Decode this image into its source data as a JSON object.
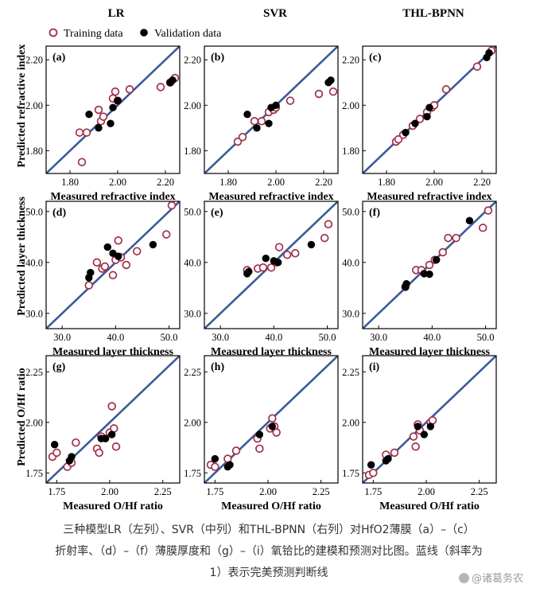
{
  "column_titles": [
    "LR",
    "SVR",
    "THL-BPNN"
  ],
  "legend": {
    "training": "Training data",
    "validation": "Validation data"
  },
  "row_axes": [
    {
      "ylabel": "Predicted refractive index",
      "xlabel": "Measured refractive index",
      "ticks": [
        1.8,
        2.0,
        2.2
      ],
      "tick_labels": [
        "1.80",
        "2.00",
        "2.20"
      ],
      "lim": [
        1.7,
        2.26
      ]
    },
    {
      "ylabel": "Predicted layer thickness",
      "xlabel": "Measured layer thickness",
      "ticks": [
        30,
        40,
        50
      ],
      "tick_labels": [
        "30.0",
        "40.0",
        "50.0"
      ],
      "lim": [
        27,
        52
      ]
    },
    {
      "ylabel": "Predicted O/Hf ratio",
      "xlabel": "Measured O/Hf ratio",
      "ticks": [
        1.75,
        2.0,
        2.25
      ],
      "tick_labels": [
        "1.75",
        "2.00",
        "2.25"
      ],
      "lim": [
        1.7,
        2.33
      ]
    }
  ],
  "chart_data": [
    {
      "type": "scatter",
      "panel": "(a)",
      "model": "LR",
      "row": 0,
      "col": 0,
      "xlabel": "Measured refractive index",
      "ylabel": "Predicted refractive index",
      "xlim": [
        1.7,
        2.26
      ],
      "ylim": [
        1.7,
        2.26
      ],
      "reference_line": "y = x",
      "series": [
        {
          "name": "Training data",
          "x": [
            1.84,
            1.85,
            1.87,
            1.92,
            1.93,
            1.94,
            1.98,
            1.99,
            2.0,
            2.05,
            2.18,
            2.22,
            2.24
          ],
          "y": [
            1.88,
            1.75,
            1.88,
            1.98,
            1.93,
            1.95,
            2.03,
            2.06,
            2.02,
            2.07,
            2.08,
            2.1,
            2.12
          ]
        },
        {
          "name": "Validation data",
          "x": [
            1.88,
            1.92,
            1.97,
            1.98,
            2.0,
            2.22,
            2.23
          ],
          "y": [
            1.96,
            1.9,
            1.92,
            1.99,
            2.02,
            2.1,
            2.11
          ]
        }
      ]
    },
    {
      "type": "scatter",
      "panel": "(b)",
      "model": "SVR",
      "row": 0,
      "col": 1,
      "xlabel": "Measured refractive index",
      "ylabel": "Predicted refractive index",
      "xlim": [
        1.7,
        2.26
      ],
      "ylim": [
        1.7,
        2.26
      ],
      "reference_line": "y = x",
      "series": [
        {
          "name": "Training data",
          "x": [
            1.84,
            1.86,
            1.91,
            1.94,
            1.97,
            1.99,
            2.0,
            2.06,
            2.18,
            2.24
          ],
          "y": [
            1.84,
            1.86,
            1.93,
            1.93,
            1.97,
            1.98,
            1.99,
            2.02,
            2.05,
            2.06
          ]
        },
        {
          "name": "Validation data",
          "x": [
            1.88,
            1.92,
            1.97,
            1.98,
            2.0,
            2.22,
            2.23
          ],
          "y": [
            1.96,
            1.9,
            1.92,
            1.99,
            2.0,
            2.1,
            2.11
          ]
        }
      ]
    },
    {
      "type": "scatter",
      "panel": "(c)",
      "model": "THL-BPNN",
      "row": 0,
      "col": 2,
      "xlabel": "Measured refractive index",
      "ylabel": "Predicted refractive index",
      "xlim": [
        1.7,
        2.26
      ],
      "ylim": [
        1.7,
        2.26
      ],
      "reference_line": "y = x",
      "series": [
        {
          "name": "Training data",
          "x": [
            1.84,
            1.85,
            1.87,
            1.91,
            1.94,
            1.97,
            1.99,
            2.0,
            2.05,
            2.18,
            2.24
          ],
          "y": [
            1.84,
            1.85,
            1.87,
            1.91,
            1.94,
            1.97,
            1.99,
            2.0,
            2.07,
            2.17,
            2.24
          ]
        },
        {
          "name": "Validation data",
          "x": [
            1.88,
            1.92,
            1.97,
            1.98,
            2.22,
            2.23
          ],
          "y": [
            1.88,
            1.92,
            1.95,
            1.99,
            2.21,
            2.23
          ]
        }
      ]
    },
    {
      "type": "scatter",
      "panel": "(d)",
      "model": "LR",
      "row": 1,
      "col": 0,
      "xlabel": "Measured layer thickness",
      "ylabel": "Predicted layer thickness",
      "xlim": [
        27,
        52
      ],
      "ylim": [
        27,
        52
      ],
      "reference_line": "y = x",
      "series": [
        {
          "name": "Training data",
          "x": [
            35.0,
            36.5,
            37.5,
            38.0,
            39.5,
            40.0,
            40.5,
            41.0,
            42.0,
            44.0,
            49.5,
            50.5
          ],
          "y": [
            35.5,
            40.0,
            38.8,
            39.2,
            37.5,
            40.5,
            44.3,
            41.0,
            39.5,
            42.2,
            45.5,
            51.2
          ]
        },
        {
          "name": "Validation data",
          "x": [
            35.0,
            35.3,
            38.5,
            39.5,
            40.5,
            47.0
          ],
          "y": [
            37.0,
            38.0,
            43.0,
            41.8,
            41.2,
            43.5
          ]
        }
      ]
    },
    {
      "type": "scatter",
      "panel": "(e)",
      "model": "SVR",
      "row": 1,
      "col": 1,
      "xlabel": "Measured layer thickness",
      "ylabel": "Predicted layer thickness",
      "xlim": [
        27,
        52
      ],
      "ylim": [
        27,
        52
      ],
      "reference_line": "y = x",
      "series": [
        {
          "name": "Training data",
          "x": [
            35.0,
            37.0,
            38.0,
            39.5,
            40.5,
            41.0,
            42.5,
            44.0,
            49.5,
            50.2
          ],
          "y": [
            38.5,
            38.8,
            39.0,
            39.0,
            40.0,
            43.0,
            41.5,
            41.8,
            44.8,
            47.5
          ]
        },
        {
          "name": "Validation data",
          "x": [
            35.0,
            35.3,
            38.5,
            40.0,
            40.8,
            47.0
          ],
          "y": [
            37.8,
            38.2,
            40.8,
            40.3,
            40.0,
            43.5
          ]
        }
      ]
    },
    {
      "type": "scatter",
      "panel": "(f)",
      "model": "THL-BPNN",
      "row": 1,
      "col": 2,
      "xlabel": "Measured layer thickness",
      "ylabel": "Predicted layer thickness",
      "xlim": [
        27,
        52
      ],
      "ylim": [
        27,
        52
      ],
      "reference_line": "y = x",
      "series": [
        {
          "name": "Training data",
          "x": [
            35.0,
            37.0,
            38.0,
            39.5,
            40.5,
            42.0,
            43.0,
            44.5,
            49.5,
            50.5
          ],
          "y": [
            35.2,
            38.5,
            38.5,
            39.5,
            40.5,
            42.0,
            44.8,
            44.8,
            46.8,
            50.2
          ]
        },
        {
          "name": "Validation data",
          "x": [
            35.0,
            35.2,
            38.5,
            39.5,
            40.8,
            47.0
          ],
          "y": [
            35.2,
            35.8,
            37.8,
            37.7,
            40.5,
            48.2
          ]
        }
      ]
    },
    {
      "type": "scatter",
      "panel": "(g)",
      "model": "LR",
      "row": 2,
      "col": 0,
      "xlabel": "Measured O/Hf ratio",
      "ylabel": "Predicted O/Hf ratio",
      "xlim": [
        1.7,
        2.33
      ],
      "ylim": [
        1.7,
        2.33
      ],
      "reference_line": "y = x",
      "series": [
        {
          "name": "Training data",
          "x": [
            1.73,
            1.75,
            1.8,
            1.82,
            1.84,
            1.94,
            1.95,
            1.96,
            2.0,
            2.01,
            2.02,
            2.03
          ],
          "y": [
            1.83,
            1.85,
            1.78,
            1.8,
            1.9,
            1.87,
            1.85,
            1.93,
            1.95,
            2.08,
            1.97,
            1.88
          ]
        },
        {
          "name": "Validation data",
          "x": [
            1.74,
            1.81,
            1.82,
            1.96,
            1.98,
            2.01
          ],
          "y": [
            1.89,
            1.81,
            1.83,
            1.92,
            1.92,
            1.94
          ]
        }
      ]
    },
    {
      "type": "scatter",
      "panel": "(h)",
      "model": "SVR",
      "row": 2,
      "col": 1,
      "xlabel": "Measured O/Hf ratio",
      "ylabel": "Predicted O/Hf ratio",
      "xlim": [
        1.7,
        2.33
      ],
      "ylim": [
        1.7,
        2.33
      ],
      "reference_line": "y = x",
      "series": [
        {
          "name": "Training data",
          "x": [
            1.73,
            1.75,
            1.81,
            1.85,
            1.95,
            1.96,
            2.01,
            2.02,
            2.03,
            2.04
          ],
          "y": [
            1.79,
            1.78,
            1.82,
            1.86,
            1.92,
            1.87,
            1.97,
            2.02,
            1.98,
            1.95
          ]
        },
        {
          "name": "Validation data",
          "x": [
            1.75,
            1.81,
            1.82,
            1.96,
            2.02
          ],
          "y": [
            1.82,
            1.78,
            1.79,
            1.94,
            1.98
          ]
        }
      ]
    },
    {
      "type": "scatter",
      "panel": "(i)",
      "model": "THL-BPNN",
      "row": 2,
      "col": 2,
      "xlabel": "Measured O/Hf ratio",
      "ylabel": "Predicted O/Hf ratio",
      "xlim": [
        1.7,
        2.33
      ],
      "ylim": [
        1.7,
        2.33
      ],
      "reference_line": "y = x",
      "series": [
        {
          "name": "Training data",
          "x": [
            1.73,
            1.75,
            1.81,
            1.85,
            1.94,
            1.95,
            1.96,
            1.97,
            2.02,
            2.03
          ],
          "y": [
            1.74,
            1.75,
            1.84,
            1.85,
            1.93,
            1.88,
            1.99,
            1.96,
            2.0,
            2.01
          ]
        },
        {
          "name": "Validation data",
          "x": [
            1.74,
            1.81,
            1.82,
            1.96,
            1.99,
            2.02
          ],
          "y": [
            1.79,
            1.81,
            1.82,
            1.98,
            1.94,
            1.98
          ]
        }
      ]
    }
  ],
  "colors": {
    "line": "#3a5a9a",
    "training_marker": "#a0304a",
    "validation_marker": "#000000"
  },
  "caption": {
    "line1": "三种模型LR（左列）、SVR（中列）和THL-BPNN（右列）对HfO2薄膜（a）–（c）",
    "line2": "折射率、（d）–（f）薄膜厚度和（g）–（i）氧铪比的建模和预测对比图。蓝线（斜率为",
    "line3": "1）表示完美预测判断线"
  },
  "watermark": "@诸葛务农"
}
